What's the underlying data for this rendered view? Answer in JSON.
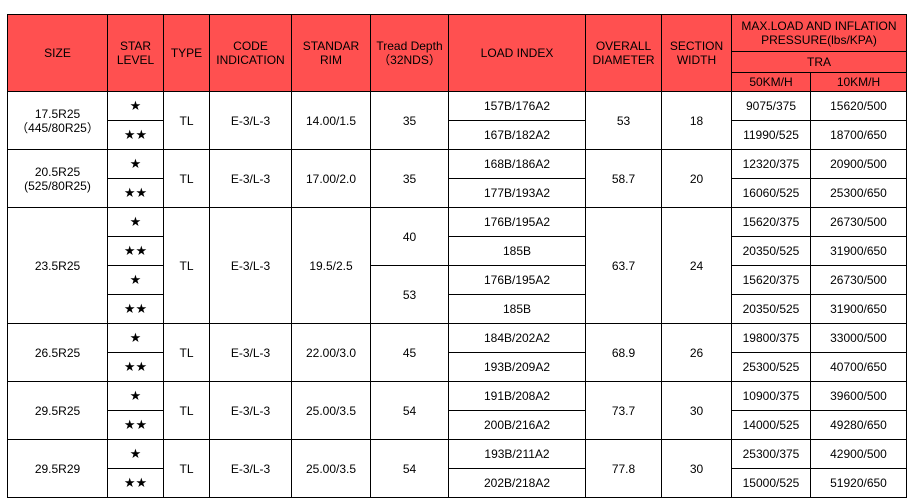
{
  "header": {
    "size": "SIZE",
    "star_level": "STAR LEVEL",
    "type": "TYPE",
    "code": "CODE INDICATION",
    "rim": "STANDAR RIM",
    "tread": "Tread Depth （32NDS）",
    "load_index": "LOAD INDEX",
    "overall_diameter": "OVERALL DIAMETER",
    "section_width": "SECTION WIDTH",
    "max_load": "MAX.LOAD AND INFLATION PRESSURE(lbs/KPA)",
    "tra": "TRA",
    "speed50": "50KM/H",
    "speed10": "10KM/H"
  },
  "groups": [
    {
      "size": "17.5R25\n（445/80R25）",
      "type": "TL",
      "code": "E-3/L-3",
      "rim": "14.00/1.5",
      "overall_diameter": "53",
      "section_width": "18",
      "treads": [
        {
          "depth": "35",
          "rows": [
            {
              "star": "★",
              "load_index": "157B/176A2",
              "speed50": "9075/375",
              "speed10": "15620/500"
            },
            {
              "star": "★★",
              "load_index": "167B/182A2",
              "speed50": "11990/525",
              "speed10": "18700/650"
            }
          ]
        }
      ]
    },
    {
      "size": "20.5R25\n(525/80R25)",
      "type": "TL",
      "code": "E-3/L-3",
      "rim": "17.00/2.0",
      "overall_diameter": "58.7",
      "section_width": "20",
      "treads": [
        {
          "depth": "35",
          "rows": [
            {
              "star": "★",
              "load_index": "168B/186A2",
              "speed50": "12320/375",
              "speed10": "20900/500"
            },
            {
              "star": "★★",
              "load_index": "177B/193A2",
              "speed50": "16060/525",
              "speed10": "25300/650"
            }
          ]
        }
      ]
    },
    {
      "size": "23.5R25",
      "type": "TL",
      "code": "E-3/L-3",
      "rim": "19.5/2.5",
      "overall_diameter": "63.7",
      "section_width": "24",
      "treads": [
        {
          "depth": "40",
          "rows": [
            {
              "star": "★",
              "load_index": "176B/195A2",
              "speed50": "15620/375",
              "speed10": "26730/500"
            },
            {
              "star": "★★",
              "load_index": "185B",
              "speed50": "20350/525",
              "speed10": "31900/650"
            }
          ]
        },
        {
          "depth": "53",
          "rows": [
            {
              "star": "★",
              "load_index": "176B/195A2",
              "speed50": "15620/375",
              "speed10": "26730/500"
            },
            {
              "star": "★★",
              "load_index": "185B",
              "speed50": "20350/525",
              "speed10": "31900/650"
            }
          ]
        }
      ]
    },
    {
      "size": "26.5R25",
      "type": "TL",
      "code": "E-3/L-3",
      "rim": "22.00/3.0",
      "overall_diameter": "68.9",
      "section_width": "26",
      "treads": [
        {
          "depth": "45",
          "rows": [
            {
              "star": "★",
              "load_index": "184B/202A2",
              "speed50": "19800/375",
              "speed10": "33000/500"
            },
            {
              "star": "★★",
              "load_index": "193B/209A2",
              "speed50": "25300/525",
              "speed10": "40700/650"
            }
          ]
        }
      ]
    },
    {
      "size": "29.5R25",
      "type": "TL",
      "code": "E-3/L-3",
      "rim": "25.00/3.5",
      "overall_diameter": "73.7",
      "section_width": "30",
      "treads": [
        {
          "depth": "54",
          "rows": [
            {
              "star": "★",
              "load_index": "191B/208A2",
              "speed50": "10900/375",
              "speed10": "39600/500"
            },
            {
              "star": "★★",
              "load_index": "200B/216A2",
              "speed50": "14000/525",
              "speed10": "49280/650"
            }
          ]
        }
      ]
    },
    {
      "size": "29.5R29",
      "type": "TL",
      "code": "E-3/L-3",
      "rim": "25.00/3.5",
      "overall_diameter": "77.8",
      "section_width": "30",
      "treads": [
        {
          "depth": "54",
          "rows": [
            {
              "star": "★",
              "load_index": "193B/211A2",
              "speed50": "25300/375",
              "speed10": "42900/500"
            },
            {
              "star": "★★",
              "load_index": "202B/218A2",
              "speed50": "15000/525",
              "speed10": "51920/650"
            }
          ]
        }
      ]
    }
  ]
}
